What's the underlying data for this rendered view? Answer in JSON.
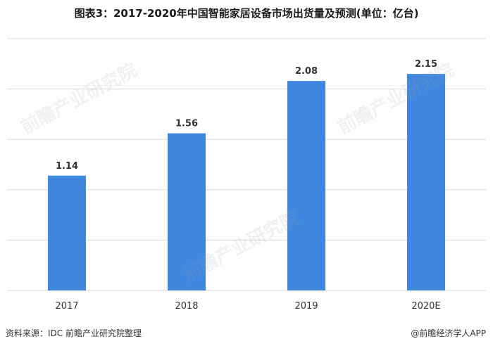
{
  "title": "图表3：2017-2020年中国智能家居设备市场出货量及预测(单位：亿台)",
  "source": "资料来源：IDC 前瞻产业研究院整理",
  "credit": "@前瞻经济学人APP",
  "watermark": "前瞻产业研究院",
  "chart_data": {
    "type": "bar",
    "title": "图表3：2017-2020年中国智能家居设备市场出货量及预测(单位：亿台)",
    "categories": [
      "2017",
      "2018",
      "2019",
      "2020E"
    ],
    "values": [
      1.14,
      1.56,
      2.08,
      2.15
    ],
    "value_labels": [
      "1.14",
      "1.56",
      "2.08",
      "2.15"
    ],
    "ylim": [
      0,
      2.5
    ],
    "grid": true,
    "bar_color": "#3f87df",
    "grid_color": "#d9d9d9"
  }
}
